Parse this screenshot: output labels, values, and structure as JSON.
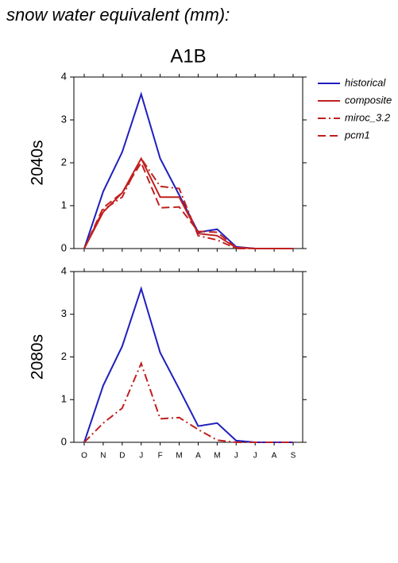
{
  "chart_data": [
    {
      "type": "line",
      "title": "snow water equivalent (mm):",
      "subtitle": "A1B",
      "ylabel": "2040s",
      "ylim": [
        0,
        4
      ],
      "yticks": [
        0,
        1,
        2,
        3,
        4
      ],
      "series": [
        {
          "name": "historical",
          "color": "#1f1fbf",
          "dash": "solid",
          "values": [
            0,
            1.33,
            2.25,
            3.6,
            2.1,
            1.25,
            0.38,
            0.45,
            0.04,
            0,
            0,
            0
          ]
        },
        {
          "name": "composite",
          "color": "#c0201f",
          "dash": "solid",
          "values": [
            0,
            0.85,
            1.3,
            2.1,
            1.2,
            1.2,
            0.35,
            0.3,
            0.02,
            0,
            0,
            0
          ]
        },
        {
          "name": "miroc_3.2",
          "color": "#c0201f",
          "dash": "dashdot",
          "values": [
            0,
            0.9,
            1.2,
            2.1,
            1.45,
            1.4,
            0.3,
            0.2,
            0,
            0,
            0,
            0
          ]
        },
        {
          "name": "pcm1",
          "color": "#c0201f",
          "dash": "dashed",
          "values": [
            0,
            0.95,
            1.3,
            2.0,
            0.95,
            0.97,
            0.4,
            0.38,
            0.02,
            0,
            0,
            0
          ]
        }
      ]
    },
    {
      "type": "line",
      "ylabel": "2080s",
      "categories": [
        "O",
        "N",
        "D",
        "J",
        "F",
        "M",
        "A",
        "M",
        "J",
        "J",
        "A",
        "S"
      ],
      "ylim": [
        0,
        4
      ],
      "yticks": [
        0,
        1,
        2,
        3,
        4
      ],
      "series": [
        {
          "color": "#1f1fbf",
          "dash": "solid",
          "values": [
            0,
            1.33,
            2.25,
            3.6,
            2.1,
            1.25,
            0.38,
            0.45,
            0.04,
            0,
            0,
            0
          ]
        },
        {
          "color": "#c0201f",
          "dash": "dashdot",
          "values": [
            0,
            0.45,
            0.8,
            1.85,
            0.55,
            0.58,
            0.3,
            0.05,
            0,
            0,
            0,
            0
          ]
        }
      ]
    }
  ]
}
